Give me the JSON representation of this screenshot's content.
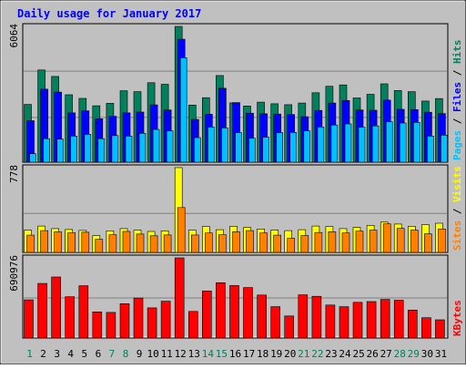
{
  "chart_data": {
    "type": "bar",
    "title": "Daily usage for January 2017",
    "x": [
      "1",
      "2",
      "3",
      "4",
      "5",
      "6",
      "7",
      "8",
      "9",
      "10",
      "11",
      "12",
      "13",
      "14",
      "15",
      "16",
      "17",
      "18",
      "19",
      "20",
      "21",
      "22",
      "23",
      "24",
      "25",
      "26",
      "27",
      "28",
      "29",
      "30",
      "31"
    ],
    "weekend_days": [
      1,
      7,
      8,
      14,
      15,
      21,
      22,
      28,
      29
    ],
    "panels": [
      {
        "id": "traffic",
        "ymax_label": "6064",
        "ymax": 6064,
        "right_labels": [
          {
            "text": "Pages",
            "color": "#00c0ff"
          },
          {
            "text": " / ",
            "color": "#000000"
          },
          {
            "text": "Files",
            "color": "#0000ff"
          },
          {
            "text": " / ",
            "color": "#000000"
          },
          {
            "text": "Hits",
            "color": "#00805c"
          }
        ],
        "series": [
          {
            "name": "Hits",
            "color": "#00805c",
            "values": [
              2580,
              4120,
              3830,
              3010,
              2850,
              2520,
              2630,
              3190,
              3150,
              3550,
              3480,
              6064,
              2550,
              2880,
              3870,
              2650,
              2510,
              2680,
              2610,
              2570,
              2640,
              3100,
              3390,
              3450,
              2870,
              3030,
              3500,
              3200,
              3150,
              2730,
              2840
            ]
          },
          {
            "name": "Files",
            "color": "#0000ff",
            "values": [
              1850,
              3260,
              3130,
              2200,
              2290,
              1940,
              2050,
              2200,
              2240,
              2560,
              2330,
              5490,
              1910,
              2140,
              3300,
              2660,
              2190,
              2160,
              2150,
              2130,
              2030,
              2310,
              2640,
              2750,
              2330,
              2320,
              2770,
              2360,
              2350,
              2230,
              2170
            ]
          },
          {
            "name": "Pages",
            "color": "#00c0ff",
            "values": [
              380,
              1050,
              1030,
              1170,
              1240,
              1050,
              1190,
              1170,
              1290,
              1460,
              1400,
              4670,
              1100,
              1570,
              1530,
              1320,
              1070,
              1120,
              1320,
              1330,
              1400,
              1570,
              1660,
              1710,
              1560,
              1620,
              1810,
              1750,
              1780,
              1170,
              1210
            ]
          }
        ]
      },
      {
        "id": "visitors",
        "ymax_label": "778",
        "ymax": 778,
        "right_labels": [
          {
            "text": "Sites",
            "color": "#ff8000"
          },
          {
            "text": " / ",
            "color": "#000000"
          },
          {
            "text": "Visits",
            "color": "#ffff00"
          }
        ],
        "series": [
          {
            "name": "Visits",
            "color": "#ffff00",
            "values": [
              205,
              242,
              218,
              210,
              202,
              155,
              198,
              218,
              205,
              192,
              198,
              778,
              204,
              238,
              208,
              240,
              230,
              215,
              205,
              200,
              208,
              242,
              238,
              218,
              230,
              248,
              278,
              260,
              240,
              255,
              268
            ]
          },
          {
            "name": "Sites",
            "color": "#ff8000",
            "values": [
              158,
              200,
              188,
              180,
              185,
              120,
              162,
              192,
              168,
              152,
              160,
              412,
              160,
              178,
              162,
              190,
              200,
              178,
              158,
              130,
              155,
              182,
              190,
              178,
              195,
              205,
              262,
              220,
              205,
              170,
              215
            ]
          }
        ]
      },
      {
        "id": "kbytes",
        "ymax_label": "690976",
        "ymax": 690976,
        "right_labels": [
          {
            "text": "KBytes",
            "color": "#ff0000"
          }
        ],
        "series": [
          {
            "name": "KBytes",
            "color": "#ff0000",
            "values": [
              329000,
              470000,
              526000,
              356000,
              451000,
              225000,
              221000,
              296000,
              345000,
              260000,
              317000,
              690976,
              229000,
              405000,
              477000,
              452000,
              435000,
              371000,
              270000,
              190000,
              372000,
              360000,
              284000,
              270000,
              308000,
              314000,
              333000,
              326000,
              241000,
              175000,
              157000
            ]
          }
        ]
      }
    ]
  }
}
